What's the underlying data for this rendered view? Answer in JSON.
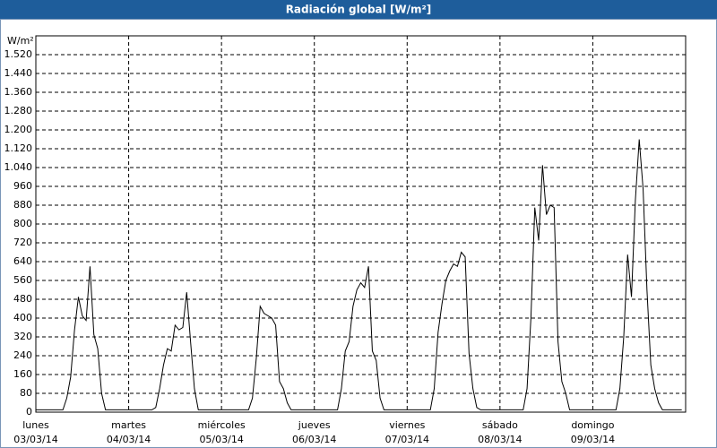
{
  "chart_data": {
    "type": "line",
    "title": "Radiación global [W/m²]",
    "y_label": "W/m²",
    "x": [
      0,
      6,
      7,
      8,
      9,
      10,
      11,
      12,
      13,
      14,
      15,
      16,
      17,
      18,
      19,
      30,
      31,
      32,
      33,
      34,
      35,
      36,
      37,
      38,
      39,
      40,
      41,
      42,
      43,
      54,
      55,
      56,
      57,
      58,
      59,
      60,
      61,
      62,
      63,
      64,
      65,
      66,
      67,
      78,
      79,
      80,
      81,
      82,
      83,
      84,
      85,
      86,
      87,
      88,
      89,
      90,
      91,
      102,
      103,
      104,
      105,
      106,
      107,
      108,
      109,
      110,
      111,
      112,
      113,
      114,
      115,
      126,
      127,
      128,
      129,
      130,
      131,
      132,
      133,
      134,
      135,
      136,
      137,
      138,
      139,
      150,
      151,
      152,
      153,
      154,
      155,
      156,
      157,
      158,
      159,
      160,
      161,
      162,
      163,
      167
    ],
    "values": [
      10,
      10,
      10,
      60,
      150,
      350,
      490,
      410,
      390,
      620,
      330,
      270,
      80,
      10,
      10,
      10,
      20,
      100,
      200,
      270,
      260,
      370,
      350,
      360,
      510,
      300,
      100,
      10,
      10,
      10,
      10,
      60,
      230,
      450,
      420,
      410,
      400,
      370,
      130,
      100,
      40,
      10,
      10,
      10,
      100,
      260,
      300,
      450,
      520,
      550,
      530,
      620,
      260,
      220,
      60,
      10,
      10,
      10,
      100,
      340,
      460,
      560,
      600,
      630,
      620,
      680,
      660,
      250,
      100,
      20,
      10,
      10,
      100,
      400,
      870,
      730,
      1050,
      840,
      880,
      870,
      300,
      130,
      80,
      10,
      10,
      10,
      100,
      320,
      670,
      490,
      900,
      1160,
      950,
      520,
      200,
      100,
      40,
      10,
      10,
      10
    ],
    "color": "#000000",
    "xlim": [
      0,
      168
    ],
    "xticks": [
      {
        "value": 0,
        "label": "lunes"
      },
      {
        "value": 24,
        "label": "martes"
      },
      {
        "value": 48,
        "label": "miércoles"
      },
      {
        "value": 72,
        "label": "jueves"
      },
      {
        "value": 96,
        "label": "viernes"
      },
      {
        "value": 120,
        "label": "sábado"
      },
      {
        "value": 144,
        "label": "domingo"
      }
    ],
    "xtick_dates": [
      "03/03/14",
      "04/03/14",
      "05/03/14",
      "06/03/14",
      "07/03/14",
      "08/03/14",
      "09/03/14"
    ],
    "ylim": [
      0,
      1600
    ],
    "yticks": [
      0,
      80,
      160,
      240,
      320,
      400,
      480,
      560,
      640,
      720,
      800,
      880,
      960,
      {
        "value": 1040,
        "label": "1.040"
      },
      {
        "value": 1120,
        "label": "1.120"
      },
      {
        "value": 1200,
        "label": "1.200"
      },
      {
        "value": 1280,
        "label": "1.280"
      },
      {
        "value": 1360,
        "label": "1.360"
      },
      {
        "value": 1440,
        "label": "1.440"
      },
      {
        "value": 1520,
        "label": "1.520"
      }
    ],
    "grid": true
  }
}
